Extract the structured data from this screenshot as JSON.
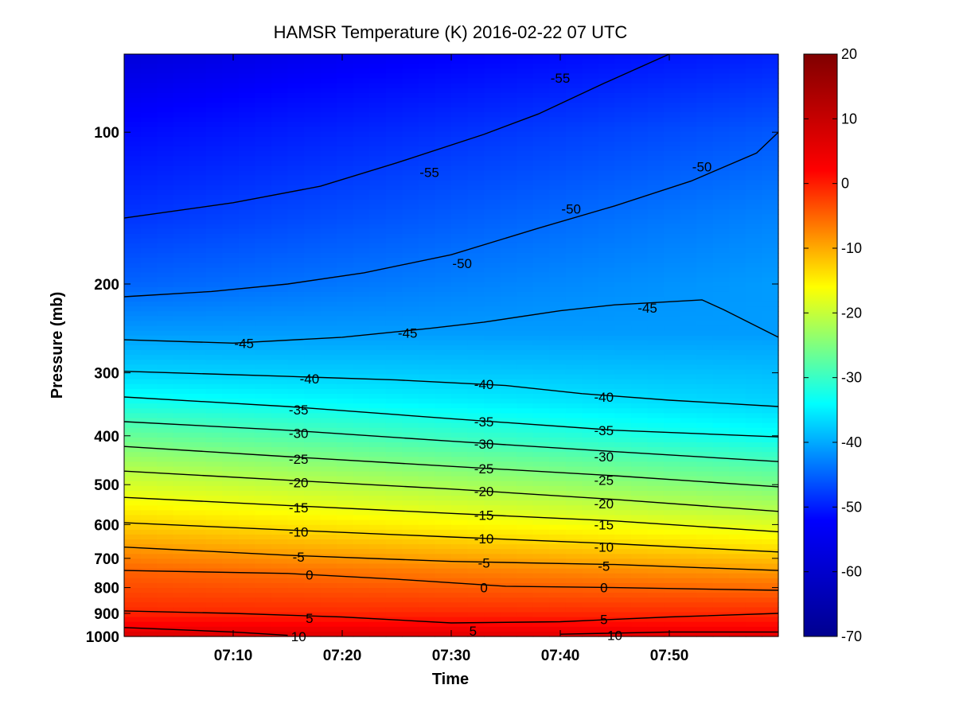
{
  "chart_data": {
    "type": "heatmap",
    "title": "HAMSR  Temperature (K) 2016-02-22 07 UTC",
    "xlabel": "Time",
    "ylabel": "Pressure (mb)",
    "x_ticks": [
      "07:10",
      "07:20",
      "07:30",
      "07:40",
      "07:50"
    ],
    "x_tick_minutes": [
      10,
      20,
      30,
      40,
      50
    ],
    "xlim_minutes": [
      0,
      60
    ],
    "y_scale": "log",
    "y_reversed": true,
    "y_ticks": [
      100,
      200,
      300,
      400,
      500,
      600,
      700,
      800,
      900,
      1000
    ],
    "ylim": [
      70,
      1000
    ],
    "colorbar": {
      "colormap": "jet",
      "range": [
        -70,
        20
      ],
      "ticks": [
        20,
        10,
        0,
        -10,
        -20,
        -30,
        -40,
        -50,
        -60,
        -70
      ],
      "colors": [
        "#00008f",
        "#0000ff",
        "#00ffff",
        "#ffff00",
        "#ff0000",
        "#800000"
      ]
    },
    "contour_levels": [
      -55,
      -50,
      -45,
      -40,
      -35,
      -30,
      -25,
      -20,
      -15,
      -10,
      -5,
      0,
      5,
      10
    ],
    "profile_start": [
      {
        "p": 70,
        "t": -62
      },
      {
        "p": 100,
        "t": -58
      },
      {
        "p": 150,
        "t": -54
      },
      {
        "p": 200,
        "t": -50
      },
      {
        "p": 250,
        "t": -45
      },
      {
        "p": 300,
        "t": -40
      },
      {
        "p": 340,
        "t": -35
      },
      {
        "p": 375,
        "t": -30
      },
      {
        "p": 420,
        "t": -25
      },
      {
        "p": 470,
        "t": -20
      },
      {
        "p": 530,
        "t": -15
      },
      {
        "p": 595,
        "t": -10
      },
      {
        "p": 665,
        "t": -5
      },
      {
        "p": 740,
        "t": 0
      },
      {
        "p": 890,
        "t": 5
      },
      {
        "p": 960,
        "t": 10
      },
      {
        "p": 1000,
        "t": 12
      }
    ],
    "profile_end": [
      {
        "p": 70,
        "t": -56
      },
      {
        "p": 100,
        "t": -51
      },
      {
        "p": 150,
        "t": -47
      },
      {
        "p": 200,
        "t": -45
      },
      {
        "p": 250,
        "t": -45
      },
      {
        "p": 300,
        "t": -42
      },
      {
        "p": 345,
        "t": -40
      },
      {
        "p": 405,
        "t": -35
      },
      {
        "p": 450,
        "t": -30
      },
      {
        "p": 505,
        "t": -25
      },
      {
        "p": 565,
        "t": -20
      },
      {
        "p": 620,
        "t": -15
      },
      {
        "p": 680,
        "t": -10
      },
      {
        "p": 740,
        "t": -5
      },
      {
        "p": 810,
        "t": 0
      },
      {
        "p": 900,
        "t": 5
      },
      {
        "p": 980,
        "t": 10
      },
      {
        "p": 1000,
        "t": 11
      }
    ],
    "contours": [
      {
        "level": -55,
        "points": [
          [
            0,
            148
          ],
          [
            10,
            138
          ],
          [
            18,
            128
          ],
          [
            25,
            115
          ],
          [
            33,
            101
          ],
          [
            38,
            92
          ],
          [
            44,
            80
          ],
          [
            50,
            70
          ]
        ]
      },
      {
        "level": -50,
        "points": [
          [
            0,
            212
          ],
          [
            8,
            207
          ],
          [
            15,
            200
          ],
          [
            22,
            190
          ],
          [
            30,
            175
          ],
          [
            38,
            155
          ],
          [
            45,
            140
          ],
          [
            52,
            125
          ],
          [
            58,
            110
          ],
          [
            60,
            100
          ]
        ]
      },
      {
        "level": -45,
        "points": [
          [
            0,
            258
          ],
          [
            10,
            262
          ],
          [
            20,
            255
          ],
          [
            28,
            245
          ],
          [
            33,
            238
          ],
          [
            40,
            226
          ],
          [
            45,
            220
          ],
          [
            53,
            215
          ],
          [
            55,
            225
          ],
          [
            60,
            255
          ]
        ]
      },
      {
        "level": -40,
        "points": [
          [
            0,
            298
          ],
          [
            15,
            305
          ],
          [
            25,
            310
          ],
          [
            35,
            318
          ],
          [
            42,
            330
          ],
          [
            50,
            340
          ],
          [
            60,
            350
          ]
        ]
      },
      {
        "level": -35,
        "points": [
          [
            0,
            335
          ],
          [
            15,
            350
          ],
          [
            30,
            370
          ],
          [
            45,
            390
          ],
          [
            60,
            402
          ]
        ]
      },
      {
        "level": -30,
        "points": [
          [
            0,
            375
          ],
          [
            15,
            390
          ],
          [
            30,
            410
          ],
          [
            45,
            430
          ],
          [
            60,
            450
          ]
        ]
      },
      {
        "level": -25,
        "points": [
          [
            0,
            420
          ],
          [
            15,
            440
          ],
          [
            30,
            460
          ],
          [
            45,
            480
          ],
          [
            60,
            505
          ]
        ]
      },
      {
        "level": -20,
        "points": [
          [
            0,
            470
          ],
          [
            15,
            490
          ],
          [
            30,
            510
          ],
          [
            45,
            535
          ],
          [
            60,
            565
          ]
        ]
      },
      {
        "level": -15,
        "points": [
          [
            0,
            530
          ],
          [
            15,
            550
          ],
          [
            30,
            570
          ],
          [
            45,
            590
          ],
          [
            60,
            620
          ]
        ]
      },
      {
        "level": -10,
        "points": [
          [
            0,
            595
          ],
          [
            15,
            615
          ],
          [
            30,
            635
          ],
          [
            45,
            655
          ],
          [
            60,
            680
          ]
        ]
      },
      {
        "level": -5,
        "points": [
          [
            0,
            665
          ],
          [
            15,
            690
          ],
          [
            30,
            710
          ],
          [
            45,
            720
          ],
          [
            60,
            740
          ]
        ]
      },
      {
        "level": 0,
        "points": [
          [
            0,
            740
          ],
          [
            15,
            750
          ],
          [
            25,
            770
          ],
          [
            35,
            795
          ],
          [
            45,
            800
          ],
          [
            60,
            810
          ]
        ]
      },
      {
        "level": 5,
        "points": [
          [
            0,
            890
          ],
          [
            10,
            900
          ],
          [
            20,
            915
          ],
          [
            30,
            940
          ],
          [
            40,
            935
          ],
          [
            50,
            915
          ],
          [
            60,
            900
          ]
        ]
      },
      {
        "level": 10,
        "points": [
          [
            0,
            960
          ],
          [
            10,
            980
          ],
          [
            15,
            995
          ]
        ]
      },
      {
        "level": 10,
        "points": [
          [
            40,
            990
          ],
          [
            50,
            980
          ],
          [
            60,
            980
          ]
        ]
      }
    ],
    "contour_labels": [
      {
        "text": "-55",
        "x": 28,
        "y": 120
      },
      {
        "text": "-55",
        "x": 40,
        "y": 78
      },
      {
        "text": "-50",
        "x": 31,
        "y": 182
      },
      {
        "text": "-50",
        "x": 41,
        "y": 142
      },
      {
        "text": "-50",
        "x": 53,
        "y": 117
      },
      {
        "text": "-45",
        "x": 11,
        "y": 262
      },
      {
        "text": "-45",
        "x": 26,
        "y": 250
      },
      {
        "text": "-45",
        "x": 48,
        "y": 223
      },
      {
        "text": "-40",
        "x": 17,
        "y": 308
      },
      {
        "text": "-40",
        "x": 33,
        "y": 316
      },
      {
        "text": "-40",
        "x": 44,
        "y": 335
      },
      {
        "text": "-35",
        "x": 16,
        "y": 355
      },
      {
        "text": "-35",
        "x": 33,
        "y": 375
      },
      {
        "text": "-35",
        "x": 44,
        "y": 390
      },
      {
        "text": "-30",
        "x": 16,
        "y": 395
      },
      {
        "text": "-30",
        "x": 33,
        "y": 415
      },
      {
        "text": "-30",
        "x": 44,
        "y": 440
      },
      {
        "text": "-25",
        "x": 16,
        "y": 445
      },
      {
        "text": "-25",
        "x": 33,
        "y": 465
      },
      {
        "text": "-25",
        "x": 44,
        "y": 490
      },
      {
        "text": "-20",
        "x": 16,
        "y": 495
      },
      {
        "text": "-20",
        "x": 33,
        "y": 515
      },
      {
        "text": "-20",
        "x": 44,
        "y": 545
      },
      {
        "text": "-15",
        "x": 16,
        "y": 555
      },
      {
        "text": "-15",
        "x": 33,
        "y": 575
      },
      {
        "text": "-15",
        "x": 44,
        "y": 600
      },
      {
        "text": "-10",
        "x": 16,
        "y": 620
      },
      {
        "text": "-10",
        "x": 33,
        "y": 640
      },
      {
        "text": "-10",
        "x": 44,
        "y": 665
      },
      {
        "text": "-5",
        "x": 16,
        "y": 695
      },
      {
        "text": "-5",
        "x": 33,
        "y": 715
      },
      {
        "text": "-5",
        "x": 44,
        "y": 725
      },
      {
        "text": "0",
        "x": 17,
        "y": 755
      },
      {
        "text": "0",
        "x": 33,
        "y": 800
      },
      {
        "text": "0",
        "x": 44,
        "y": 800
      },
      {
        "text": "5",
        "x": 17,
        "y": 920
      },
      {
        "text": "5",
        "x": 32,
        "y": 975
      },
      {
        "text": "5",
        "x": 44,
        "y": 925
      },
      {
        "text": "10",
        "x": 16,
        "y": 1000
      },
      {
        "text": "10",
        "x": 45,
        "y": 995
      }
    ]
  }
}
